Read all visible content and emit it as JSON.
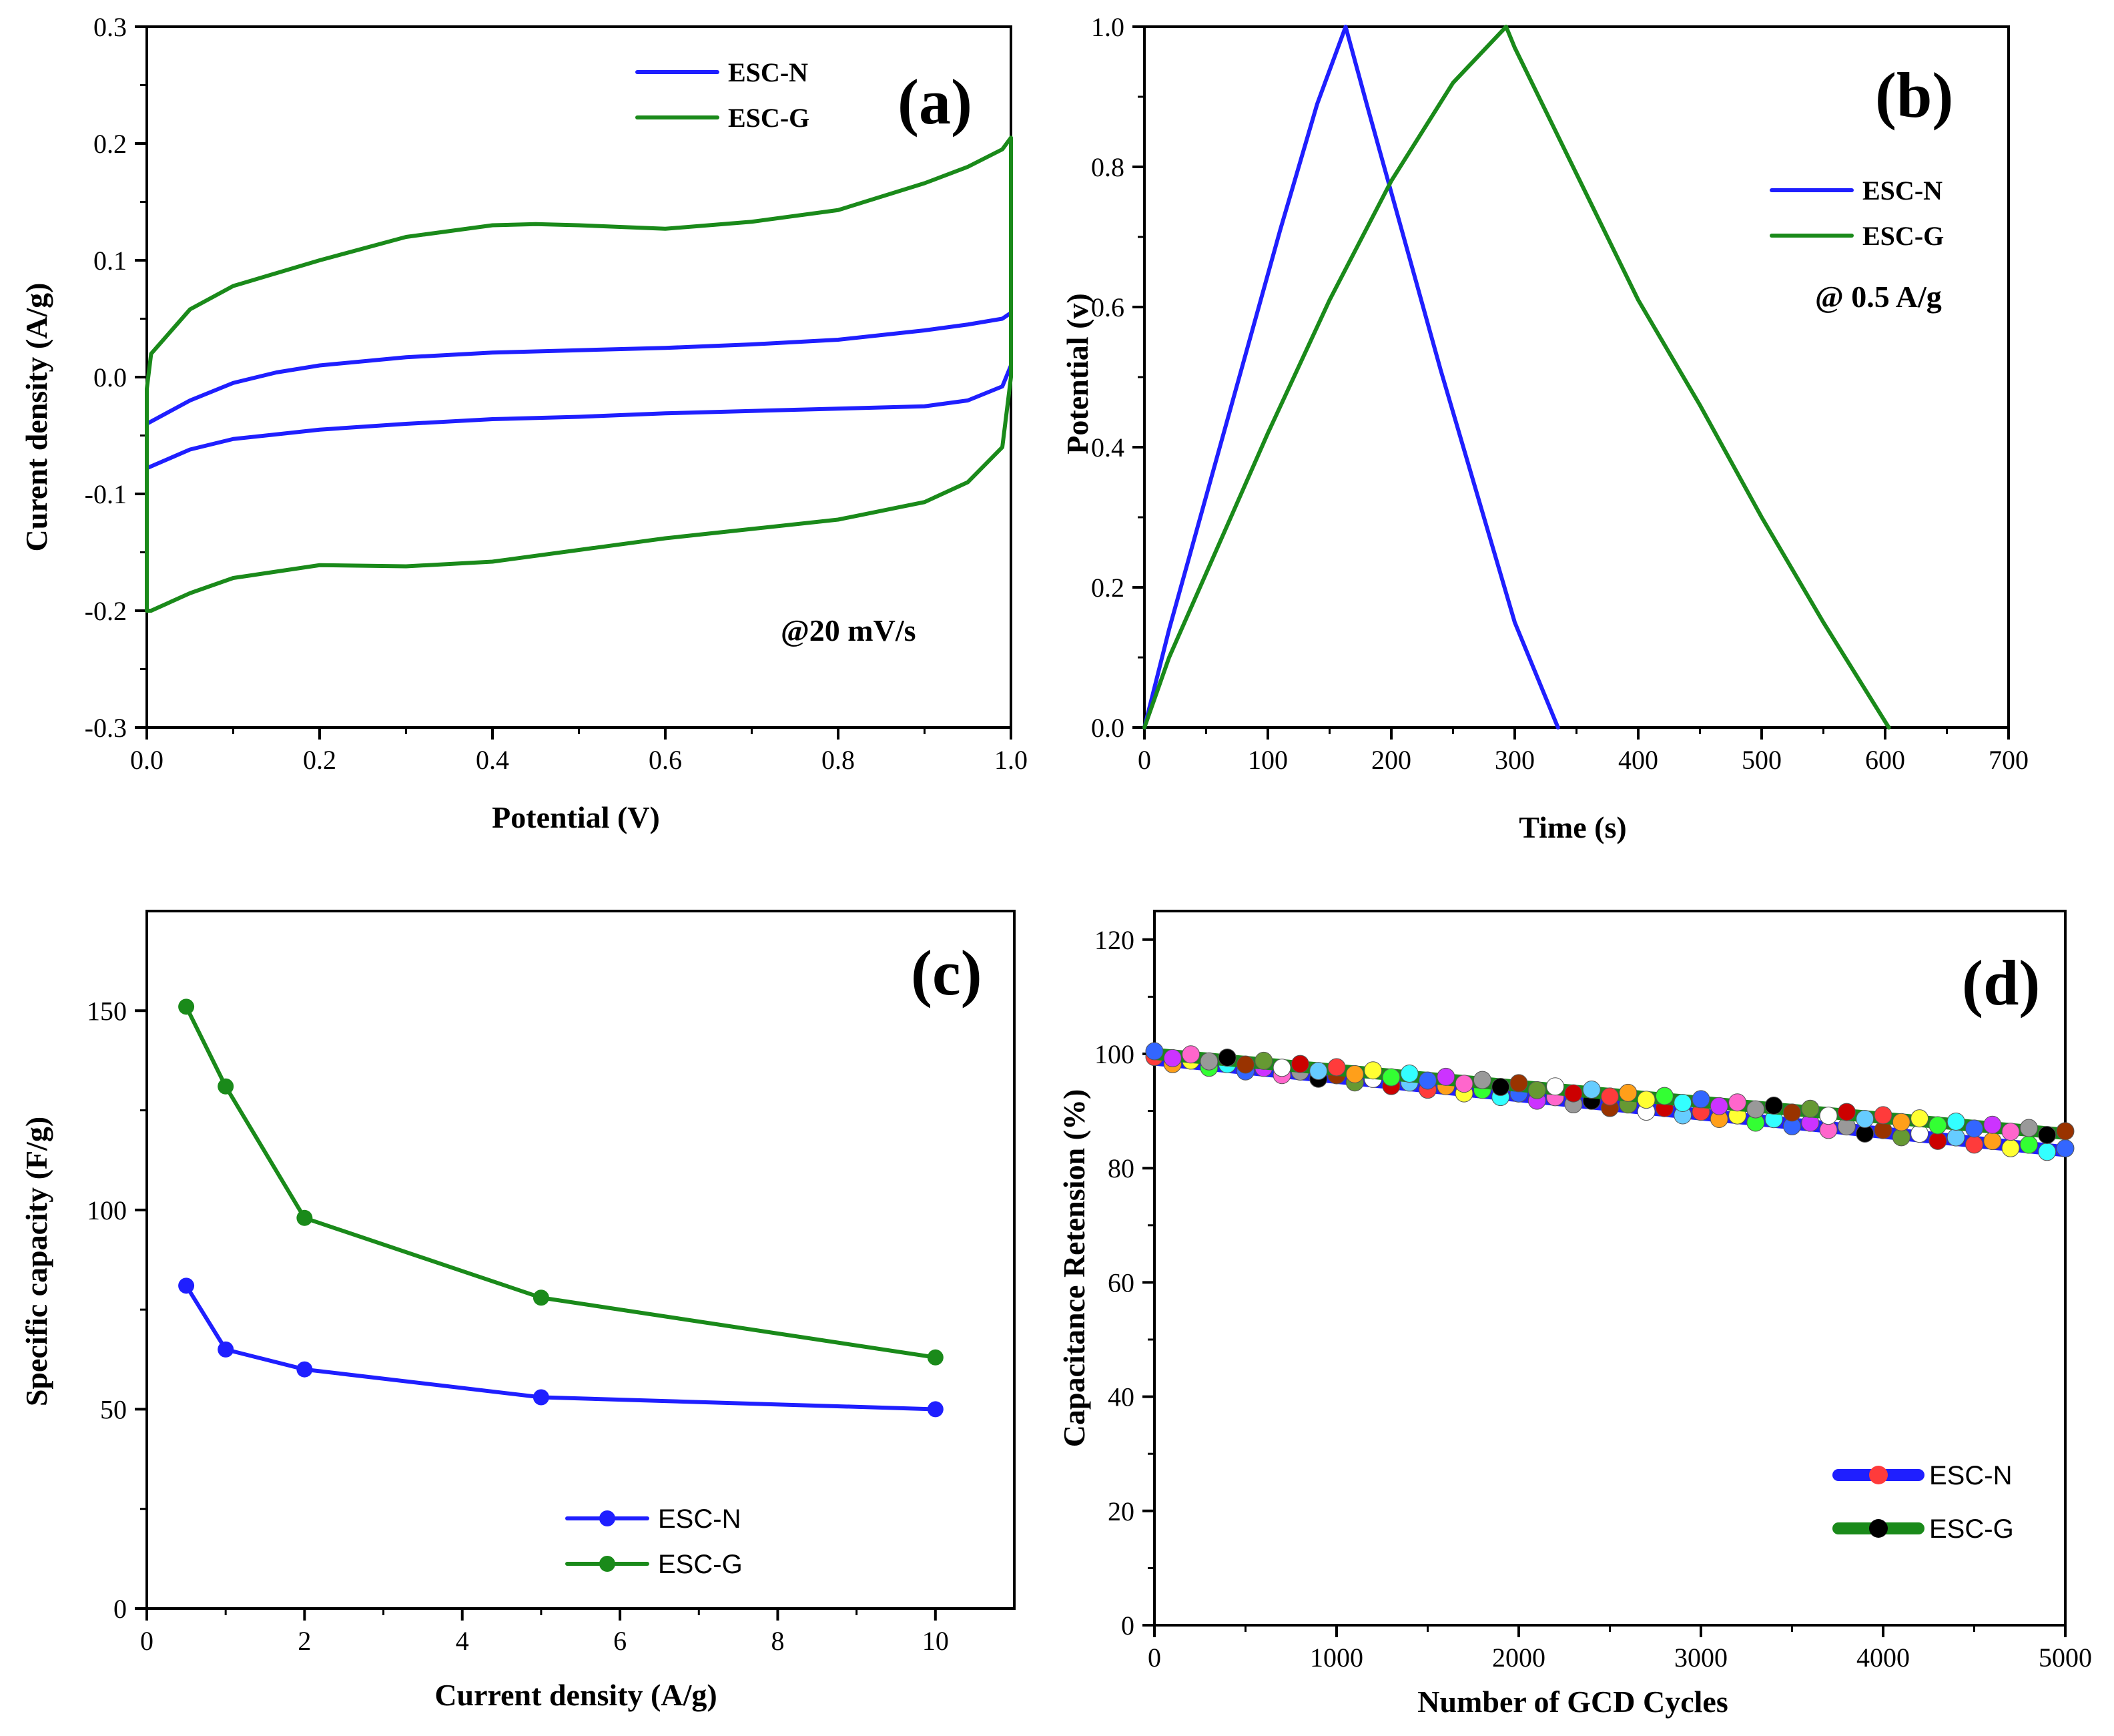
{
  "chart_data": [
    {
      "id": "a",
      "type": "line",
      "panel_letter": "(a)",
      "xlabel": "Potential (V)",
      "ylabel": "Curent density (A/g)",
      "xlim": [
        0.0,
        1.0
      ],
      "ylim": [
        -0.3,
        0.3
      ],
      "xticks": [
        0.0,
        0.2,
        0.4,
        0.6,
        0.8,
        1.0
      ],
      "xtick_labels": [
        "0.0",
        "0.2",
        "0.4",
        "0.6",
        "0.8",
        "1.0"
      ],
      "yticks": [
        -0.3,
        -0.2,
        -0.1,
        0.0,
        0.1,
        0.2,
        0.3
      ],
      "ytick_labels": [
        "-0.3",
        "-0.2",
        "-0.1",
        "0.0",
        "0.1",
        "0.2",
        "0.3"
      ],
      "annotation": "@20 mV/s",
      "legend": [
        "ESC-N",
        "ESC-G"
      ],
      "legend_position": "top-right",
      "series": [
        {
          "name": "ESC-N",
          "color": "#1f1fff",
          "x": [
            0.0,
            0.05,
            0.1,
            0.15,
            0.2,
            0.3,
            0.4,
            0.5,
            0.6,
            0.7,
            0.8,
            0.9,
            0.95,
            0.99,
            1.0,
            1.0,
            0.99,
            0.95,
            0.9,
            0.8,
            0.7,
            0.6,
            0.5,
            0.4,
            0.3,
            0.2,
            0.1,
            0.05,
            0.0,
            0.0
          ],
          "y": [
            -0.04,
            -0.02,
            -0.005,
            0.004,
            0.01,
            0.017,
            0.021,
            0.023,
            0.025,
            0.028,
            0.032,
            0.04,
            0.045,
            0.05,
            0.055,
            0.01,
            -0.008,
            -0.02,
            -0.025,
            -0.027,
            -0.029,
            -0.031,
            -0.034,
            -0.036,
            -0.04,
            -0.045,
            -0.053,
            -0.062,
            -0.078,
            -0.04
          ]
        },
        {
          "name": "ESC-G",
          "color": "#1a8a1a",
          "x": [
            0.0,
            0.005,
            0.05,
            0.1,
            0.2,
            0.3,
            0.4,
            0.45,
            0.5,
            0.6,
            0.7,
            0.8,
            0.9,
            0.95,
            0.99,
            1.0,
            1.0,
            0.99,
            0.95,
            0.9,
            0.8,
            0.7,
            0.6,
            0.5,
            0.4,
            0.3,
            0.2,
            0.1,
            0.05,
            0.005,
            0.0,
            0.0
          ],
          "y": [
            -0.01,
            0.02,
            0.058,
            0.078,
            0.1,
            0.12,
            0.13,
            0.131,
            0.13,
            0.127,
            0.133,
            0.143,
            0.166,
            0.18,
            0.195,
            0.205,
            0.0,
            -0.06,
            -0.09,
            -0.107,
            -0.122,
            -0.13,
            -0.138,
            -0.148,
            -0.158,
            -0.162,
            -0.161,
            -0.172,
            -0.185,
            -0.2,
            -0.2,
            -0.01
          ]
        }
      ]
    },
    {
      "id": "b",
      "type": "line",
      "panel_letter": "(b)",
      "xlabel": "Time (s)",
      "ylabel": "Potential (v)",
      "xlim": [
        0,
        700
      ],
      "ylim": [
        0.0,
        1.0
      ],
      "xticks": [
        0,
        100,
        200,
        300,
        400,
        500,
        600,
        700
      ],
      "xtick_labels": [
        "0",
        "100",
        "200",
        "300",
        "400",
        "500",
        "600",
        "700"
      ],
      "yticks": [
        0.0,
        0.2,
        0.4,
        0.6,
        0.8,
        1.0
      ],
      "ytick_labels": [
        "0.0",
        "0.2",
        "0.4",
        "0.6",
        "0.8",
        "1.0"
      ],
      "annotation": "@ 0.5 A/g",
      "legend": [
        "ESC-N",
        "ESC-G"
      ],
      "legend_position": "top-right",
      "series": [
        {
          "name": "ESC-N",
          "color": "#1f1fff",
          "x": [
            0,
            20,
            50,
            80,
            110,
            140,
            163,
            180,
            210,
            240,
            270,
            300,
            335
          ],
          "y": [
            0.0,
            0.14,
            0.33,
            0.52,
            0.71,
            0.89,
            1.0,
            0.89,
            0.7,
            0.51,
            0.33,
            0.15,
            0.0
          ],
          "ymax": 1.0
        },
        {
          "name": "ESC-G",
          "color": "#1a8a1a",
          "x": [
            0,
            20,
            50,
            100,
            150,
            200,
            250,
            293,
            300,
            350,
            400,
            450,
            500,
            550,
            603
          ],
          "y": [
            0.0,
            0.1,
            0.22,
            0.42,
            0.61,
            0.78,
            0.92,
            1.0,
            0.97,
            0.79,
            0.61,
            0.46,
            0.3,
            0.15,
            0.0
          ]
        }
      ]
    },
    {
      "id": "c",
      "type": "line",
      "panel_letter": "(c)",
      "xlabel": "Current density (A/g)",
      "ylabel": "Specific capacity (F/g)",
      "xlim": [
        0,
        11
      ],
      "ylim": [
        0,
        175
      ],
      "xticks": [
        0,
        2,
        4,
        6,
        8,
        10
      ],
      "xtick_labels": [
        "0",
        "2",
        "4",
        "6",
        "8",
        "10"
      ],
      "yticks": [
        0,
        50,
        100,
        150
      ],
      "ytick_labels": [
        "0",
        "50",
        "100",
        "150"
      ],
      "legend": [
        "ESC-N",
        "ESC-G"
      ],
      "legend_position": "bottom-center",
      "series": [
        {
          "name": "ESC-N",
          "color": "#1f1fff",
          "x": [
            0.5,
            1,
            2,
            5,
            10
          ],
          "y": [
            81,
            65,
            60,
            53,
            50
          ]
        },
        {
          "name": "ESC-G",
          "color": "#1a8a1a",
          "x": [
            0.5,
            1,
            2,
            5,
            10
          ],
          "y": [
            151,
            131,
            98,
            78,
            63
          ]
        }
      ]
    },
    {
      "id": "d",
      "type": "scatter",
      "panel_letter": "(d)",
      "xlabel": "Number of GCD Cycles",
      "ylabel": "Capacitance Retension (%)",
      "xlim": [
        0,
        5000
      ],
      "ylim": [
        0,
        125
      ],
      "xticks": [
        0,
        1000,
        2000,
        3000,
        4000,
        5000
      ],
      "xtick_labels": [
        "0",
        "1000",
        "2000",
        "3000",
        "4000",
        "5000"
      ],
      "yticks": [
        0,
        20,
        40,
        60,
        80,
        100,
        120
      ],
      "ytick_labels": [
        "0",
        "20",
        "40",
        "60",
        "80",
        "100",
        "120"
      ],
      "legend": [
        "ESC-N",
        "ESC-G"
      ],
      "legend_position": "bottom-right",
      "marker_palette": [
        "#ff3b3b",
        "#ff9f1a",
        "#ffff33",
        "#33ff33",
        "#33ffff",
        "#3366ff",
        "#cc33ff",
        "#ff66cc",
        "#999999",
        "#000000",
        "#993300",
        "#669933",
        "#ffffff",
        "#cc0000",
        "#66ccff"
      ],
      "series": [
        {
          "name": "ESC-N",
          "color": "#1f1fff",
          "legend_marker": "#ff3b3b",
          "x_start": 0,
          "x_end": 5000,
          "y_start": 99,
          "y_end": 83,
          "n_points": 51
        },
        {
          "name": "ESC-G",
          "color": "#1a8a1a",
          "legend_marker": "#000000",
          "x_start": 0,
          "x_end": 5000,
          "y_start": 100,
          "y_end": 86,
          "n_points": 51
        }
      ]
    }
  ]
}
